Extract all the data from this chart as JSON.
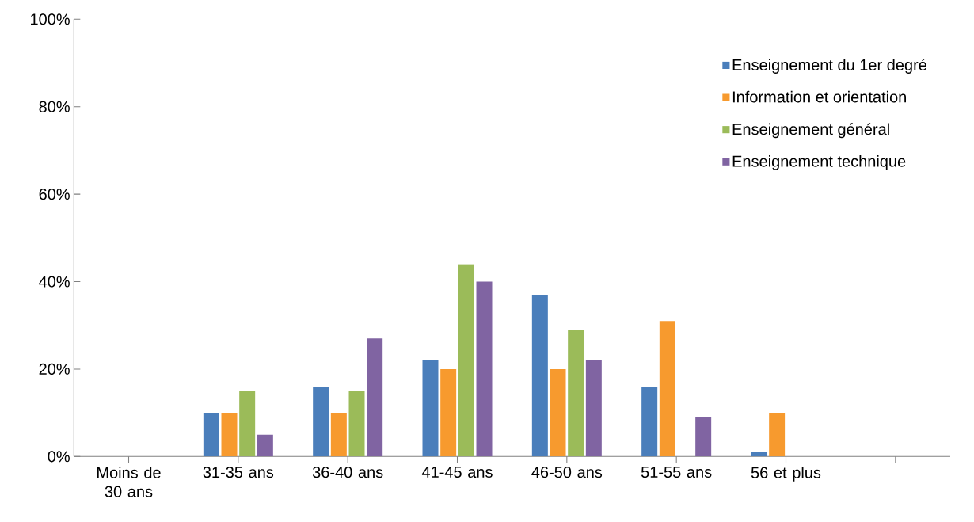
{
  "chart_data": {
    "type": "bar",
    "categories": [
      "Moins de 30 ans",
      "31-35 ans",
      "36-40 ans",
      "41-45 ans",
      "46-50 ans",
      "51-55 ans",
      "56 et plus",
      null
    ],
    "series": [
      {
        "name": "Enseignement du 1er degré",
        "color": "#4a7ebb",
        "values": [
          0,
          10,
          16,
          22,
          37,
          16,
          1,
          null
        ]
      },
      {
        "name": "Information et orientation",
        "color": "#f79a2e",
        "values": [
          0,
          10,
          10,
          20,
          20,
          31,
          10,
          null
        ]
      },
      {
        "name": "Enseignement général",
        "color": "#9bbb59",
        "values": [
          0,
          15,
          15,
          44,
          29,
          0,
          0,
          null
        ]
      },
      {
        "name": "Enseignement technique",
        "color": "#8064a2",
        "values": [
          0,
          5,
          27,
          40,
          22,
          9,
          0,
          null
        ]
      }
    ],
    "ylim": [
      0,
      100
    ],
    "yticks": [
      {
        "value": 0,
        "label": "0%"
      },
      {
        "value": 20,
        "label": "20%"
      },
      {
        "value": 40,
        "label": "40%"
      },
      {
        "value": 60,
        "label": "60%"
      },
      {
        "value": 80,
        "label": "80%"
      },
      {
        "value": 100,
        "label": "100%"
      }
    ],
    "grid": false,
    "legend": "top right"
  }
}
